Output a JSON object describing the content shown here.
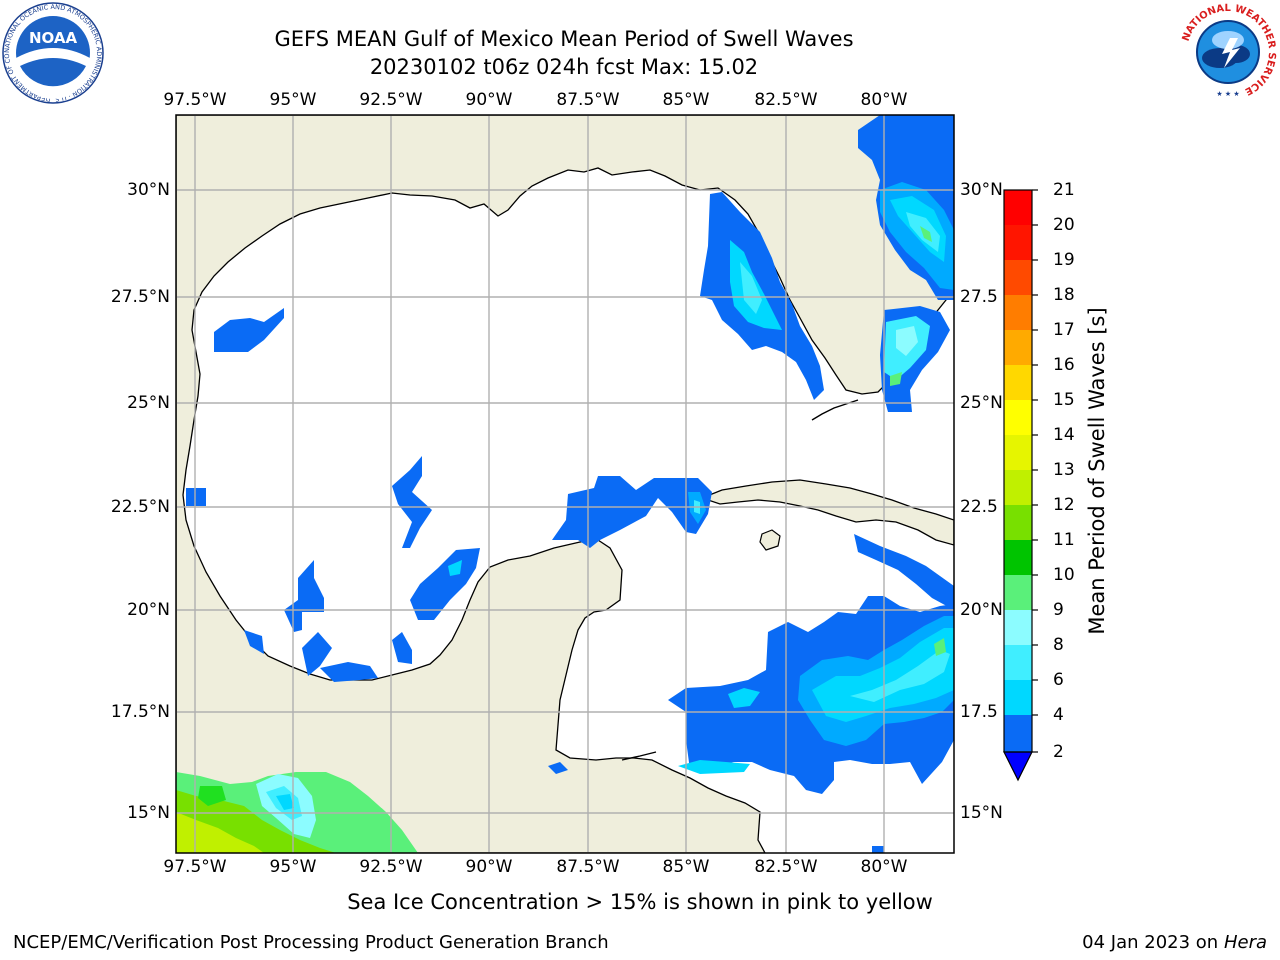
{
  "title": {
    "line1": "GEFS MEAN Gulf of Mexico Mean Period of Swell Waves",
    "line2": "20230102 t06z 024h fcst    Max: 15.02"
  },
  "map": {
    "lon_labels": [
      "97.5°W",
      "95°W",
      "92.5°W",
      "90°W",
      "87.5°W",
      "85°W",
      "82.5°W",
      "80°W"
    ],
    "lat_labels": [
      "30°N",
      "27.5°N",
      "25°N",
      "22.5°N",
      "20°N",
      "17.5°N",
      "15°N"
    ],
    "lat_labels_right": [
      "30°N",
      "27.5",
      "25°N",
      "22.5",
      "20°N",
      "17.5",
      "15°N"
    ],
    "land_color": "#efeedc",
    "ocean_color": "#ffffff",
    "grid_color": "#b0b0b0"
  },
  "colorbar": {
    "label": "Mean Period of Swell Waves [s]",
    "ticks": [
      "2",
      "4",
      "6",
      "8",
      "9",
      "10",
      "11",
      "12",
      "13",
      "14",
      "15",
      "16",
      "17",
      "18",
      "19",
      "20",
      "21"
    ],
    "colors": [
      "#0a6bf5",
      "#00aaff",
      "#00d8ff",
      "#40eeff",
      "#8cfcff",
      "#5af07a",
      "#20e020",
      "#00c400",
      "#78e000",
      "#c0f000",
      "#e6f500",
      "#ffff00",
      "#ffd800",
      "#ffaa00",
      "#ff7d00",
      "#ff4a00",
      "#ff1500",
      "#ff0000"
    ]
  },
  "logos": {
    "noaa_text": "NOAA",
    "noaa_ring_text": "NATIONAL OCEANIC AND ATMOSPHERIC ADMINISTRATION · U.S. DEPARTMENT OF COMMERCE",
    "nws_ring_text": "NATIONAL WEATHER SERVICE"
  },
  "footnote": "Sea Ice Concentration > 15% is shown in pink to yellow",
  "credit": "NCEP/EMC/Verification Post Processing Product Generation Branch",
  "date": {
    "text": "04 Jan 2023 on ",
    "host": "Hera"
  }
}
